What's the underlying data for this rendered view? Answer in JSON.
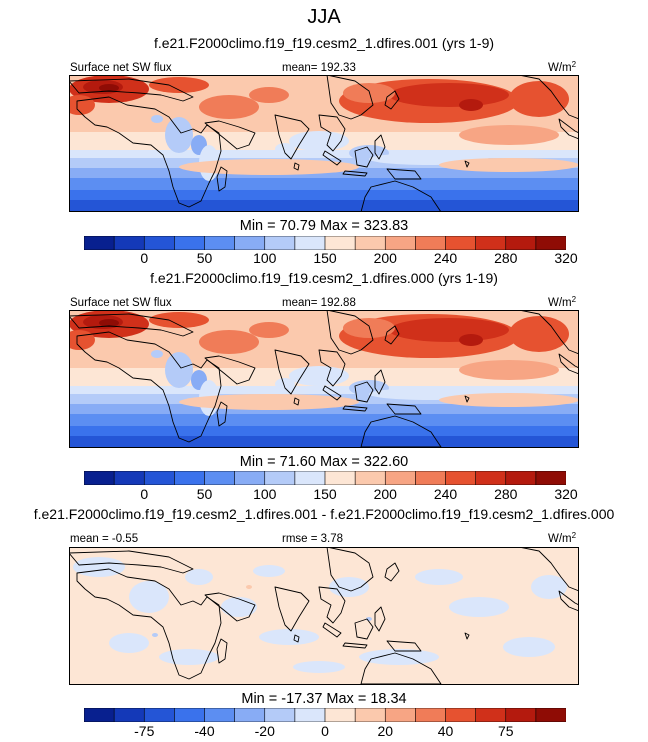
{
  "figure": {
    "season": "JJA"
  },
  "panels": [
    {
      "title": "f.e21.F2000climo.f19_f19.cesm2_1.dfires.001 (yrs 1-9)",
      "left_label": "Surface net SW flux",
      "mid_label": "mean= 192.33",
      "units": "W/m",
      "units_exp": "2",
      "stats": "Min =  70.79 Max = 323.83"
    },
    {
      "title": "f.e21.F2000climo.f19_f19.cesm2_1.dfires.000 (yrs 1-19)",
      "left_label": "Surface net SW flux",
      "mid_label": "mean= 192.88",
      "units": "W/m",
      "units_exp": "2",
      "stats": "Min =  71.60 Max = 322.60"
    },
    {
      "title": "f.e21.F2000climo.f19_f19.cesm2_1.dfires.001 - f.e21.F2000climo.f19_f19.cesm2_1.dfires.000",
      "left_label": "mean =  -0.55",
      "mid_label": "rmse =   3.78",
      "units": "W/m",
      "units_exp": "2",
      "stats": "Min = -17.37 Max =  18.34"
    }
  ],
  "colorbar": {
    "colors": [
      "#08208f",
      "#1439b8",
      "#2455d6",
      "#3a72ec",
      "#5c8ef2",
      "#88acf5",
      "#b4cbf8",
      "#dae6fb",
      "#fde6d5",
      "#fbc9ad",
      "#f7a584",
      "#f07c58",
      "#e65230",
      "#d0301a",
      "#b41a0e",
      "#8f0c05"
    ],
    "abs_ticks": [
      "0",
      "50",
      "100",
      "150",
      "200",
      "240",
      "280",
      "320"
    ],
    "diff_ticks": [
      "-75",
      "-40",
      "-20",
      "0",
      "20",
      "40",
      "75"
    ]
  },
  "chart_data": {
    "type": "heatmap",
    "note": "Three map panels of JJA surface net shortwave flux (W/m2): two model runs and their difference.",
    "panels": [
      {
        "name": "f.e21.F2000climo.f19_f19.cesm2_1.dfires.001 (yrs 1-9)",
        "mean": 192.33,
        "min": 70.79,
        "max": 323.83,
        "levels": [
          0,
          25,
          50,
          75,
          100,
          125,
          150,
          175,
          200,
          220,
          240,
          260,
          280,
          300,
          320
        ]
      },
      {
        "name": "f.e21.F2000climo.f19_f19.cesm2_1.dfires.000 (yrs 1-19)",
        "mean": 192.88,
        "min": 71.6,
        "max": 322.6,
        "levels": [
          0,
          25,
          50,
          75,
          100,
          125,
          150,
          175,
          200,
          220,
          240,
          260,
          280,
          300,
          320
        ]
      },
      {
        "name": "difference",
        "mean": -0.55,
        "rmse": 3.78,
        "min": -17.37,
        "max": 18.34,
        "levels": [
          -100,
          -75,
          -50,
          -40,
          -30,
          -20,
          -10,
          0,
          10,
          20,
          30,
          40,
          50,
          75,
          100
        ]
      }
    ]
  }
}
